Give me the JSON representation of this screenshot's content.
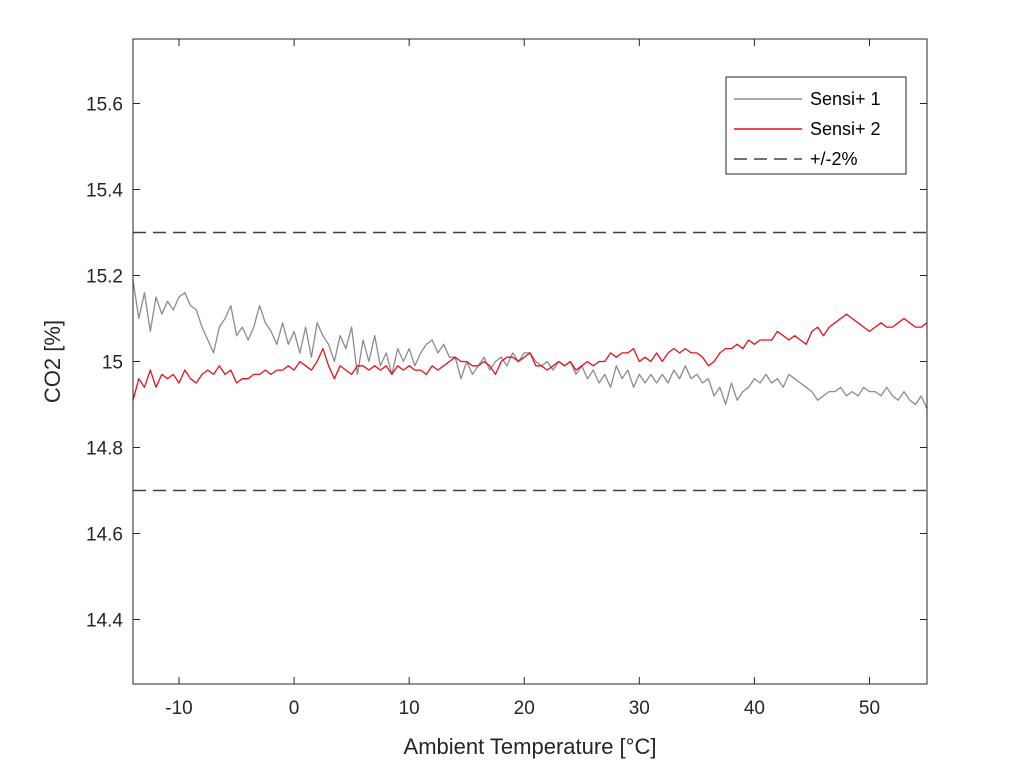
{
  "chart_data": {
    "type": "line",
    "title": "",
    "xlabel": "Ambient Temperature [°C]",
    "ylabel": "CO2 [%]",
    "xlim": [
      -14,
      55
    ],
    "ylim": [
      14.25,
      15.75
    ],
    "xticks": [
      -10,
      0,
      10,
      20,
      30,
      40,
      50
    ],
    "xtick_labels": [
      "-10",
      "0",
      "10",
      "20",
      "30",
      "40",
      "50"
    ],
    "yticks": [
      14.4,
      14.6,
      14.8,
      15,
      15.2,
      15.4,
      15.6
    ],
    "ytick_labels": [
      "14.4",
      "14.6",
      "14.8",
      "15",
      "15.2",
      "15.4",
      "15.6"
    ],
    "grid": false,
    "legend_position": "top-right",
    "series": [
      {
        "name": "Sensi+ 1",
        "color": "#8c8c8c",
        "style": "solid",
        "x": [
          -14,
          -13.5,
          -13,
          -12.5,
          -12,
          -11.5,
          -11,
          -10.5,
          -10,
          -9.5,
          -9,
          -8.5,
          -8,
          -7.5,
          -7,
          -6.5,
          -6,
          -5.5,
          -5,
          -4.5,
          -4,
          -3.5,
          -3,
          -2.5,
          -2,
          -1.5,
          -1,
          -0.5,
          0,
          0.5,
          1,
          1.5,
          2,
          2.5,
          3,
          3.5,
          4,
          4.5,
          5,
          5.5,
          6,
          6.5,
          7,
          7.5,
          8,
          8.5,
          9,
          9.5,
          10,
          10.5,
          11,
          11.5,
          12,
          12.5,
          13,
          13.5,
          14,
          14.5,
          15,
          15.5,
          16,
          16.5,
          17,
          17.5,
          18,
          18.5,
          19,
          19.5,
          20,
          20.5,
          21,
          21.5,
          22,
          22.5,
          23,
          23.5,
          24,
          24.5,
          25,
          25.5,
          26,
          26.5,
          27,
          27.5,
          28,
          28.5,
          29,
          29.5,
          30,
          30.5,
          31,
          31.5,
          32,
          32.5,
          33,
          33.5,
          34,
          34.5,
          35,
          35.5,
          36,
          36.5,
          37,
          37.5,
          38,
          38.5,
          39,
          39.5,
          40,
          40.5,
          41,
          41.5,
          42,
          42.5,
          43,
          43.5,
          44,
          44.5,
          45,
          45.5,
          46,
          46.5,
          47,
          47.5,
          48,
          48.5,
          49,
          49.5,
          50,
          50.5,
          51,
          51.5,
          52,
          52.5,
          53,
          53.5,
          54,
          54.5,
          55
        ],
        "y": [
          15.19,
          15.1,
          15.16,
          15.07,
          15.15,
          15.11,
          15.14,
          15.12,
          15.15,
          15.16,
          15.13,
          15.12,
          15.08,
          15.05,
          15.02,
          15.08,
          15.1,
          15.13,
          15.06,
          15.08,
          15.05,
          15.08,
          15.13,
          15.09,
          15.07,
          15.04,
          15.09,
          15.04,
          15.07,
          15.02,
          15.08,
          15.01,
          15.09,
          15.06,
          15.04,
          15.0,
          15.06,
          15.03,
          15.08,
          14.97,
          15.05,
          15.0,
          15.06,
          14.99,
          15.02,
          14.97,
          15.03,
          15.0,
          15.03,
          14.99,
          15.02,
          15.04,
          15.05,
          15.02,
          15.04,
          15.01,
          15.01,
          14.96,
          15.0,
          14.97,
          14.99,
          15.01,
          14.98,
          15.0,
          15.01,
          14.99,
          15.02,
          15.0,
          15.02,
          15.02,
          15.0,
          14.99,
          15.0,
          14.98,
          15.0,
          14.99,
          15.0,
          14.97,
          14.99,
          14.96,
          14.98,
          14.95,
          14.97,
          14.94,
          14.99,
          14.96,
          14.98,
          14.94,
          14.97,
          14.95,
          14.97,
          14.95,
          14.97,
          14.95,
          14.98,
          14.96,
          14.99,
          14.96,
          14.97,
          14.95,
          14.96,
          14.92,
          14.94,
          14.9,
          14.95,
          14.91,
          14.93,
          14.94,
          14.96,
          14.95,
          14.97,
          14.95,
          14.96,
          14.94,
          14.97,
          14.96,
          14.95,
          14.94,
          14.93,
          14.91,
          14.92,
          14.93,
          14.93,
          14.94,
          14.92,
          14.93,
          14.92,
          14.94,
          14.93,
          14.93,
          14.92,
          14.94,
          14.92,
          14.91,
          14.93,
          14.91,
          14.9,
          14.92,
          14.89
        ]
      },
      {
        "name": "Sensi+ 2",
        "color": "#e3121c",
        "style": "solid",
        "x": [
          -14,
          -13.5,
          -13,
          -12.5,
          -12,
          -11.5,
          -11,
          -10.5,
          -10,
          -9.5,
          -9,
          -8.5,
          -8,
          -7.5,
          -7,
          -6.5,
          -6,
          -5.5,
          -5,
          -4.5,
          -4,
          -3.5,
          -3,
          -2.5,
          -2,
          -1.5,
          -1,
          -0.5,
          0,
          0.5,
          1,
          1.5,
          2,
          2.5,
          3,
          3.5,
          4,
          4.5,
          5,
          5.5,
          6,
          6.5,
          7,
          7.5,
          8,
          8.5,
          9,
          9.5,
          10,
          10.5,
          11,
          11.5,
          12,
          12.5,
          13,
          13.5,
          14,
          14.5,
          15,
          15.5,
          16,
          16.5,
          17,
          17.5,
          18,
          18.5,
          19,
          19.5,
          20,
          20.5,
          21,
          21.5,
          22,
          22.5,
          23,
          23.5,
          24,
          24.5,
          25,
          25.5,
          26,
          26.5,
          27,
          27.5,
          28,
          28.5,
          29,
          29.5,
          30,
          30.5,
          31,
          31.5,
          32,
          32.5,
          33,
          33.5,
          34,
          34.5,
          35,
          35.5,
          36,
          36.5,
          37,
          37.5,
          38,
          38.5,
          39,
          39.5,
          40,
          40.5,
          41,
          41.5,
          42,
          42.5,
          43,
          43.5,
          44,
          44.5,
          45,
          45.5,
          46,
          46.5,
          47,
          47.5,
          48,
          48.5,
          49,
          49.5,
          50,
          50.5,
          51,
          51.5,
          52,
          52.5,
          53,
          53.5,
          54,
          54.5,
          55
        ],
        "y": [
          14.91,
          14.96,
          14.94,
          14.98,
          14.94,
          14.97,
          14.96,
          14.97,
          14.95,
          14.98,
          14.96,
          14.95,
          14.97,
          14.98,
          14.97,
          14.99,
          14.97,
          14.98,
          14.95,
          14.96,
          14.96,
          14.97,
          14.97,
          14.98,
          14.97,
          14.98,
          14.98,
          14.99,
          14.98,
          15.0,
          14.99,
          14.98,
          15.0,
          15.03,
          14.99,
          14.96,
          14.99,
          14.98,
          14.97,
          14.99,
          14.99,
          14.98,
          14.99,
          14.98,
          14.99,
          14.97,
          14.99,
          14.98,
          14.99,
          14.98,
          14.98,
          14.97,
          14.99,
          14.98,
          14.99,
          15.0,
          15.01,
          15.0,
          15.0,
          14.99,
          14.99,
          15.0,
          14.99,
          14.97,
          15.0,
          15.01,
          15.01,
          15.0,
          15.01,
          15.02,
          14.99,
          14.99,
          14.98,
          14.99,
          15.0,
          14.99,
          15.0,
          14.98,
          14.99,
          15.0,
          14.99,
          15.0,
          15.0,
          15.02,
          15.01,
          15.02,
          15.02,
          15.03,
          15.0,
          15.01,
          15.0,
          15.02,
          15.0,
          15.02,
          15.03,
          15.02,
          15.03,
          15.02,
          15.02,
          15.01,
          14.99,
          15.0,
          15.02,
          15.03,
          15.03,
          15.04,
          15.03,
          15.05,
          15.04,
          15.05,
          15.05,
          15.05,
          15.07,
          15.06,
          15.05,
          15.06,
          15.05,
          15.04,
          15.07,
          15.08,
          15.06,
          15.08,
          15.09,
          15.1,
          15.11,
          15.1,
          15.09,
          15.08,
          15.07,
          15.08,
          15.09,
          15.08,
          15.08,
          15.09,
          15.1,
          15.09,
          15.08,
          15.08,
          15.09
        ]
      },
      {
        "name": "+/-2%",
        "color": "#404040",
        "style": "dashed",
        "x": [
          -14,
          55
        ],
        "y": [
          15.3,
          15.3
        ]
      },
      {
        "name": "",
        "color": "#404040",
        "style": "dashed",
        "x": [
          -14,
          55
        ],
        "y": [
          14.7,
          14.7
        ]
      }
    ]
  }
}
